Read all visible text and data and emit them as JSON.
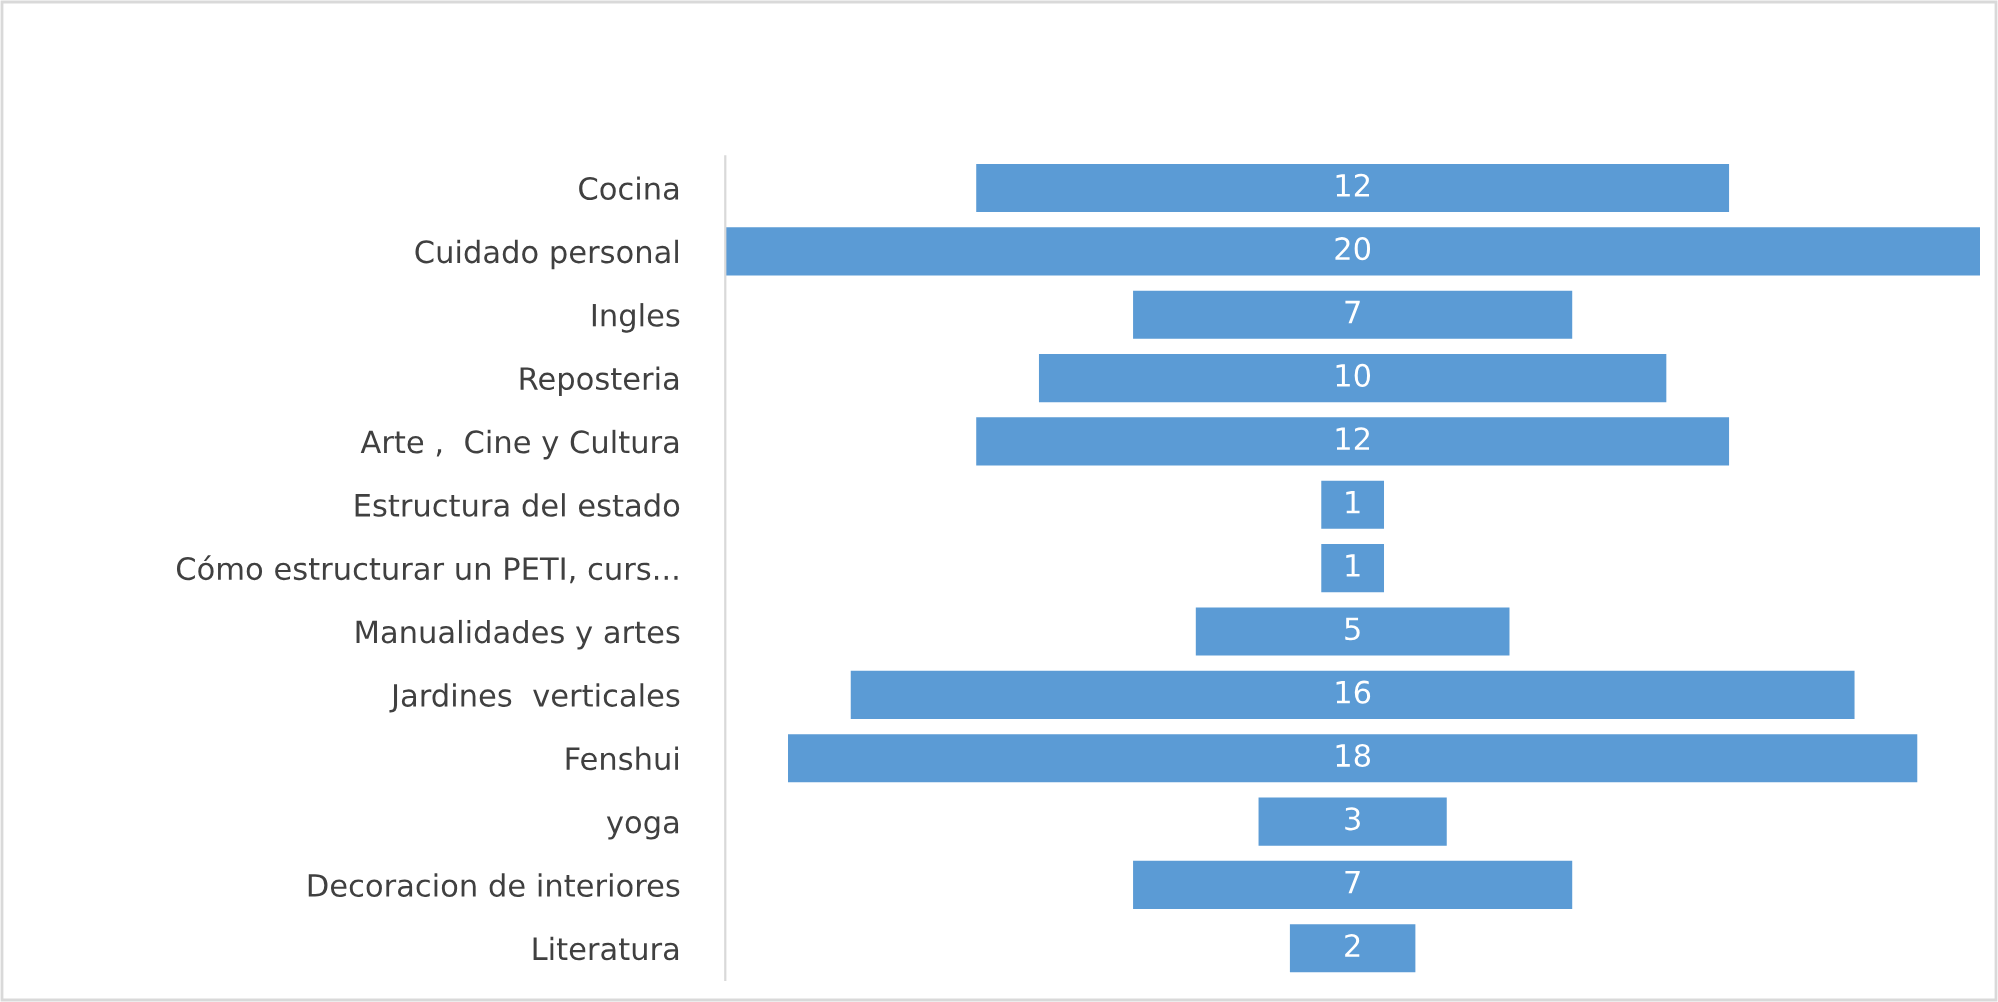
{
  "chart_data": {
    "type": "other",
    "categories": [
      "Cocina",
      "Cuidado personal",
      "Ingles",
      "Reposteria",
      "Arte ,  Cine y Cultura",
      "Estructura del estado",
      "Cómo estructurar un PETI, curs...",
      "Manualidades y artes",
      "Jardines  verticales",
      "Fenshui",
      "yoga",
      "Decoracion de interiores",
      "Literatura"
    ],
    "values": [
      12,
      20,
      7,
      10,
      12,
      1,
      1,
      5,
      16,
      18,
      3,
      7,
      2
    ],
    "color": "#5b9bd5",
    "data_labels": true
  }
}
